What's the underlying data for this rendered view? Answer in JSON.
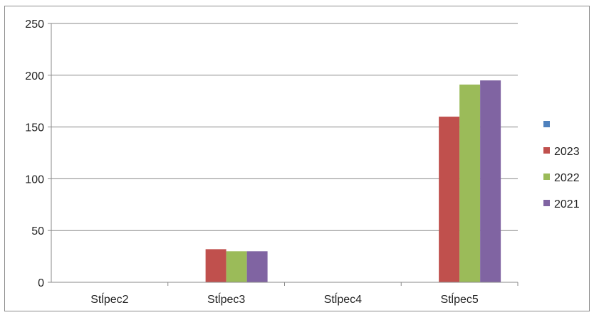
{
  "chart_data": {
    "type": "bar",
    "categories": [
      "Stĺpec2",
      "Stĺpec3",
      "Stĺpec4",
      "Stĺpec5"
    ],
    "series": [
      {
        "name": "",
        "color": "#4f81bd",
        "values": [
          0,
          0,
          0,
          0
        ]
      },
      {
        "name": "2023",
        "color": "#c0504d",
        "values": [
          0,
          32,
          0,
          160
        ]
      },
      {
        "name": "2022",
        "color": "#9bbb59",
        "values": [
          0,
          30,
          0,
          191
        ]
      },
      {
        "name": "2021",
        "color": "#8064a2",
        "values": [
          0,
          30,
          0,
          195
        ]
      }
    ],
    "yticks": [
      0,
      50,
      100,
      150,
      200,
      250
    ],
    "ylim": [
      0,
      250
    ],
    "grid": true,
    "legend": "right"
  }
}
